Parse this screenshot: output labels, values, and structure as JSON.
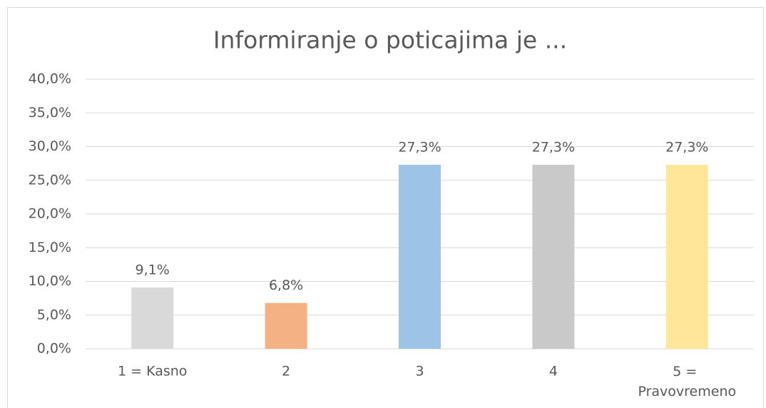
{
  "chart_data": {
    "type": "bar",
    "title": "Informiranje o poticajima je ...",
    "categories": [
      "1 = Kasno",
      "2",
      "3",
      "4",
      "5 = Pravovremeno"
    ],
    "values": [
      9.1,
      6.8,
      27.3,
      27.3,
      27.3
    ],
    "value_labels": [
      "9,1%",
      "6,8%",
      "27,3%",
      "27,3%",
      "27,3%"
    ],
    "colors": [
      "#d9d9d9",
      "#f4b183",
      "#9dc3e6",
      "#c9c9c9",
      "#ffe699"
    ],
    "ylim": [
      0,
      40
    ],
    "yticks": [
      {
        "value": 0,
        "label": "0,0%"
      },
      {
        "value": 5,
        "label": "5,0%"
      },
      {
        "value": 10,
        "label": "10,0%"
      },
      {
        "value": 15,
        "label": "15,0%"
      },
      {
        "value": 20,
        "label": "20,0%"
      },
      {
        "value": 25,
        "label": "25,0%"
      },
      {
        "value": 30,
        "label": "30,0%"
      },
      {
        "value": 35,
        "label": "35,0%"
      },
      {
        "value": 40,
        "label": "40,0%"
      }
    ],
    "grid": true
  }
}
